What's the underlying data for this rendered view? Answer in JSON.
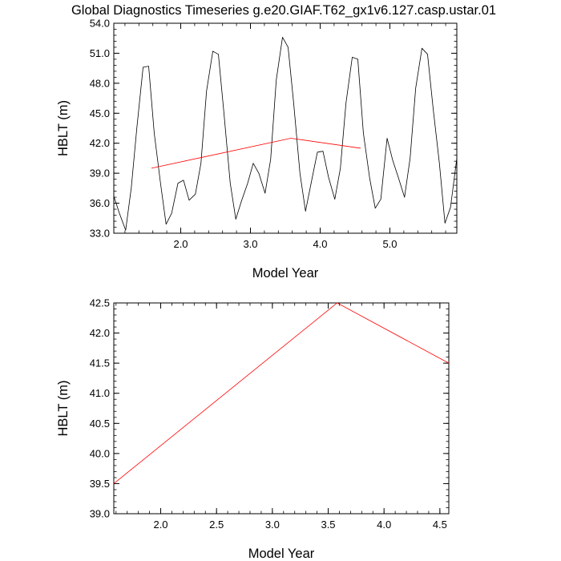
{
  "figure": {
    "title": "Global Diagnostics Timeseries g.e20.GIAF.T62_gx1v6.127.casp.ustar.01"
  },
  "chart_data": [
    {
      "type": "line",
      "title": "Global Diagnostics Timeseries g.e20.GIAF.T62_gx1v6.127.casp.ustar.01",
      "xlabel": "Model Year",
      "ylabel": "HBLT (m)",
      "xlim": [
        1.04,
        5.96
      ],
      "ylim": [
        33.0,
        54.0
      ],
      "xticks": [
        2.0,
        3.0,
        4.0,
        5.0
      ],
      "xtick_labels": [
        "2.0",
        "3.0",
        "4.0",
        "5.0"
      ],
      "yticks": [
        33.0,
        36.0,
        39.0,
        42.0,
        45.0,
        48.0,
        51.0,
        54.0
      ],
      "ytick_labels": [
        "33.0",
        "36.0",
        "39.0",
        "42.0",
        "45.0",
        "48.0",
        "51.0",
        "54.0"
      ],
      "grid": false,
      "series": [
        {
          "color": "#000000",
          "x": [
            1.04,
            1.12,
            1.21,
            1.29,
            1.37,
            1.46,
            1.54,
            1.62,
            1.71,
            1.79,
            1.87,
            1.96,
            2.04,
            2.12,
            2.21,
            2.29,
            2.37,
            2.46,
            2.54,
            2.62,
            2.71,
            2.79,
            2.87,
            2.96,
            3.04,
            3.12,
            3.21,
            3.29,
            3.37,
            3.46,
            3.54,
            3.62,
            3.71,
            3.79,
            3.87,
            3.96,
            4.04,
            4.12,
            4.21,
            4.29,
            4.37,
            4.46,
            4.54,
            4.62,
            4.71,
            4.79,
            4.87,
            4.96,
            5.04,
            5.12,
            5.21,
            5.29,
            5.37,
            5.46,
            5.54,
            5.62,
            5.71,
            5.79,
            5.87,
            5.96
          ],
          "y": [
            36.7,
            35.0,
            33.3,
            37.5,
            43.5,
            49.6,
            49.7,
            43.0,
            38.0,
            33.9,
            35.0,
            38.0,
            38.3,
            36.3,
            36.9,
            40.0,
            47.2,
            51.2,
            50.9,
            45.0,
            38.0,
            34.4,
            36.2,
            38.0,
            40.0,
            39.0,
            37.0,
            40.4,
            48.3,
            52.6,
            51.6,
            46.0,
            39.0,
            35.2,
            38.0,
            41.1,
            41.2,
            38.6,
            36.4,
            39.5,
            46.0,
            50.6,
            50.4,
            43.0,
            38.5,
            35.5,
            36.4,
            42.5,
            40.3,
            38.6,
            36.6,
            40.5,
            47.5,
            51.5,
            50.9,
            45.5,
            40.0,
            34.0,
            35.6,
            40.5
          ]
        },
        {
          "color": "#ff0000",
          "x": [
            1.58,
            3.58,
            4.58
          ],
          "y": [
            39.5,
            42.5,
            41.5
          ]
        }
      ]
    },
    {
      "type": "line",
      "title": "",
      "xlabel": "Model Year",
      "ylabel": "HBLT (m)",
      "xlim": [
        1.58,
        4.58
      ],
      "ylim": [
        39.0,
        42.5
      ],
      "xticks": [
        2.0,
        2.5,
        3.0,
        3.5,
        4.0,
        4.5
      ],
      "xtick_labels": [
        "2.0",
        "2.5",
        "3.0",
        "3.5",
        "4.0",
        "4.5"
      ],
      "yticks": [
        39.0,
        39.5,
        40.0,
        40.5,
        41.0,
        41.5,
        42.0,
        42.5
      ],
      "ytick_labels": [
        "39.0",
        "39.5",
        "40.0",
        "40.5",
        "41.0",
        "41.5",
        "42.0",
        "42.5"
      ],
      "grid": false,
      "series": [
        {
          "color": "#ff0000",
          "x": [
            1.58,
            3.58,
            4.58
          ],
          "y": [
            39.5,
            42.5,
            41.5
          ]
        }
      ]
    }
  ]
}
